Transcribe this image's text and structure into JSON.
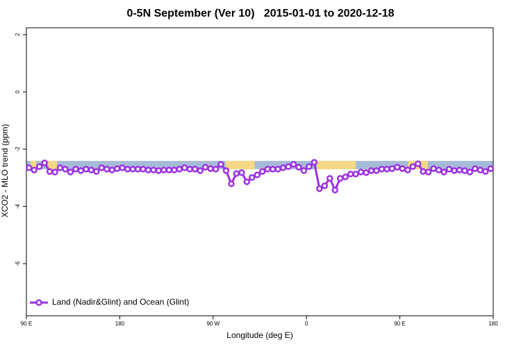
{
  "chart_data": {
    "type": "line",
    "title": "0-5N September (Ver 10)   2015-01-01 to 2020-12-18",
    "xlabel": "Longitude (deg E)",
    "ylabel": "XCO2 - MLO trend (ppm)",
    "xlim": [
      90,
      540
    ],
    "ylim": [
      -7.82,
      2.24
    ],
    "xticks": [
      {
        "value": 90,
        "label": "90 E"
      },
      180,
      {
        "value": 270,
        "label": "90 W"
      },
      {
        "value": 360,
        "label": "0"
      },
      {
        "value": 450,
        "label": "90 E"
      },
      {
        "value": 540,
        "label": "180"
      }
    ],
    "yticks": [
      2,
      0,
      -2,
      -4,
      -6
    ],
    "legend": "bottom-left",
    "band_y": [
      -2.41,
      -2.7
    ],
    "bands": [
      {
        "x": [
          90,
          540
        ],
        "color": "#a6bbd8"
      },
      {
        "x": [
          94,
          99.4
        ],
        "color": "#f5d885"
      },
      {
        "x": [
          111,
          119.5
        ],
        "color": "#f5d885"
      },
      {
        "x": [
          282,
          310
        ],
        "color": "#f5d885"
      },
      {
        "x": [
          370,
          407.5
        ],
        "color": "#f5d885"
      },
      {
        "x": [
          458,
          477
        ],
        "color": "#f5d885"
      }
    ],
    "x": [
      92.5,
      97.5,
      102.5,
      107.5,
      112.5,
      117.5,
      122.5,
      127.5,
      132.5,
      137.5,
      142.5,
      147.5,
      152.5,
      157.5,
      162.5,
      167.5,
      172.5,
      177.5,
      182.5,
      187.5,
      192.5,
      197.5,
      202.5,
      207.5,
      212.5,
      217.5,
      222.5,
      227.5,
      232.5,
      237.5,
      242.5,
      247.5,
      252.5,
      257.5,
      262.5,
      267.5,
      272.5,
      277.5,
      282.5,
      287.5,
      292.5,
      297.5,
      302.5,
      307.5,
      312.5,
      317.5,
      322.5,
      327.5,
      332.5,
      337.5,
      342.5,
      347.5,
      352.5,
      357.5,
      362.5,
      367.5,
      372.5,
      377.5,
      382.5,
      387.5,
      392.5,
      397.5,
      402.5,
      407.5,
      412.5,
      417.5,
      422.5,
      427.5,
      432.5,
      437.5,
      442.5,
      447.5,
      452.5,
      457.5,
      462.5,
      467.5,
      472.5,
      477.5,
      482.5,
      487.5,
      492.5,
      497.5,
      502.5,
      507.5,
      512.5,
      517.5,
      522.5,
      527.5,
      532.5,
      537.5
    ],
    "series": [
      {
        "name": "Land (Nadir&Glint) and Ocean (Glint)",
        "color": "#9b30e0",
        "values": [
          -2.65,
          -2.73,
          -2.61,
          -2.48,
          -2.78,
          -2.8,
          -2.65,
          -2.7,
          -2.8,
          -2.7,
          -2.75,
          -2.7,
          -2.73,
          -2.78,
          -2.65,
          -2.7,
          -2.73,
          -2.68,
          -2.65,
          -2.7,
          -2.7,
          -2.7,
          -2.7,
          -2.73,
          -2.73,
          -2.75,
          -2.73,
          -2.73,
          -2.73,
          -2.7,
          -2.65,
          -2.7,
          -2.7,
          -2.75,
          -2.63,
          -2.68,
          -2.7,
          -2.53,
          -2.75,
          -3.21,
          -2.85,
          -2.82,
          -3.14,
          -2.99,
          -2.9,
          -2.78,
          -2.7,
          -2.7,
          -2.7,
          -2.65,
          -2.61,
          -2.53,
          -2.63,
          -2.75,
          -2.61,
          -2.46,
          -3.38,
          -3.28,
          -3.02,
          -3.43,
          -3.02,
          -2.97,
          -2.87,
          -2.87,
          -2.8,
          -2.82,
          -2.75,
          -2.75,
          -2.7,
          -2.7,
          -2.68,
          -2.63,
          -2.68,
          -2.73,
          -2.61,
          -2.51,
          -2.78,
          -2.8,
          -2.68,
          -2.73,
          -2.8,
          -2.7,
          -2.75,
          -2.73,
          -2.75,
          -2.8,
          -2.68,
          -2.73,
          -2.78,
          -2.68
        ]
      }
    ]
  }
}
